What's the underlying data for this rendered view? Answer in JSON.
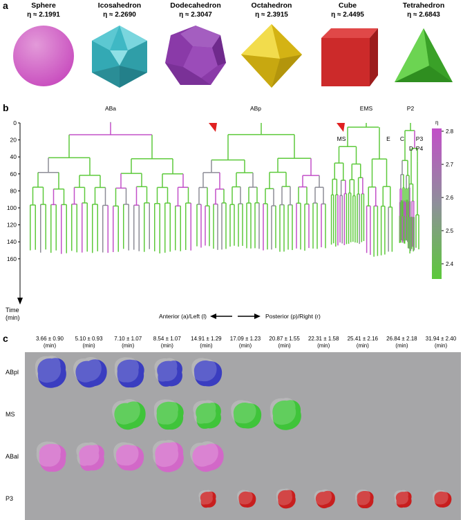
{
  "panel_a": {
    "letter": "a",
    "solids": [
      {
        "name": "Sphere",
        "eta": "η ≈ 2.1991",
        "icon": "sphere-icon",
        "color": "#c94fbf"
      },
      {
        "name": "Icosahedron",
        "eta": "η ≈ 2.2690",
        "icon": "icosahedron-icon",
        "color": "#3fb8c4"
      },
      {
        "name": "Dodecahedron",
        "eta": "η ≈ 2.3047",
        "icon": "dodecahedron-icon",
        "color": "#8a3aa8"
      },
      {
        "name": "Octahedron",
        "eta": "η ≈ 2.3915",
        "icon": "octahedron-icon",
        "color": "#e8cc1e"
      },
      {
        "name": "Cube",
        "eta": "η ≈ 2.4495",
        "icon": "cube-icon",
        "color": "#cc2a2a"
      },
      {
        "name": "Tetrahedron",
        "eta": "η ≈ 2.6843",
        "icon": "tetrahedron-icon",
        "color": "#4fbf3a"
      }
    ]
  },
  "panel_b": {
    "letter": "b",
    "lineage_labels": [
      "ABa",
      "ABp",
      "EMS",
      "P2",
      "MS",
      "E",
      "C",
      "P3",
      "D",
      "P4"
    ],
    "y_ticks": [
      "0",
      "20",
      "40",
      "60",
      "80",
      "100",
      "120",
      "140",
      "160"
    ],
    "y_label_1": "Time",
    "y_label_2": "(min)",
    "left_arrow_label": "Anterior (a)/Left (l)",
    "right_arrow_label": "Posterior (p)/Right (r)",
    "colorbar_title": "η",
    "colorbar_ticks": [
      "2.8",
      "2.7",
      "2.6",
      "2.5",
      "2.4"
    ],
    "colors": {
      "low": "#5cc93a",
      "high": "#c24fc8",
      "marker": "#e02020"
    }
  },
  "panel_c": {
    "letter": "c",
    "times": [
      {
        "value": "3.66 ± 0.90",
        "unit": "(min)"
      },
      {
        "value": "5.10 ± 0.93",
        "unit": "(min)"
      },
      {
        "value": "7.10 ± 1.07",
        "unit": "(min)"
      },
      {
        "value": "8.54 ± 1.07",
        "unit": "(min)"
      },
      {
        "value": "14.91 ± 1.29",
        "unit": "(min)"
      },
      {
        "value": "17.09 ± 1.23",
        "unit": "(min)"
      },
      {
        "value": "20.87 ± 1.55",
        "unit": "(min)"
      },
      {
        "value": "22.31 ± 1.58",
        "unit": "(min)"
      },
      {
        "value": "25.41 ± 2.16",
        "unit": "(min)"
      },
      {
        "value": "26.84 ± 2.18",
        "unit": "(min)"
      },
      {
        "value": "31.94 ± 2.40",
        "unit": "(min)"
      }
    ],
    "rows": [
      {
        "label": "ABpl",
        "color": "#3a3dc0",
        "cells": [
          0,
          1,
          2,
          3,
          4
        ]
      },
      {
        "label": "MS",
        "color": "#3fc43a",
        "cells": [
          2,
          3,
          4,
          5,
          6
        ]
      },
      {
        "label": "ABal",
        "color": "#d268c8",
        "cells": [
          0,
          1,
          2,
          3,
          4
        ]
      },
      {
        "label": "P3",
        "color": "#c81e1e",
        "cells": [
          4,
          5,
          6,
          7,
          8,
          9,
          10
        ]
      }
    ]
  }
}
